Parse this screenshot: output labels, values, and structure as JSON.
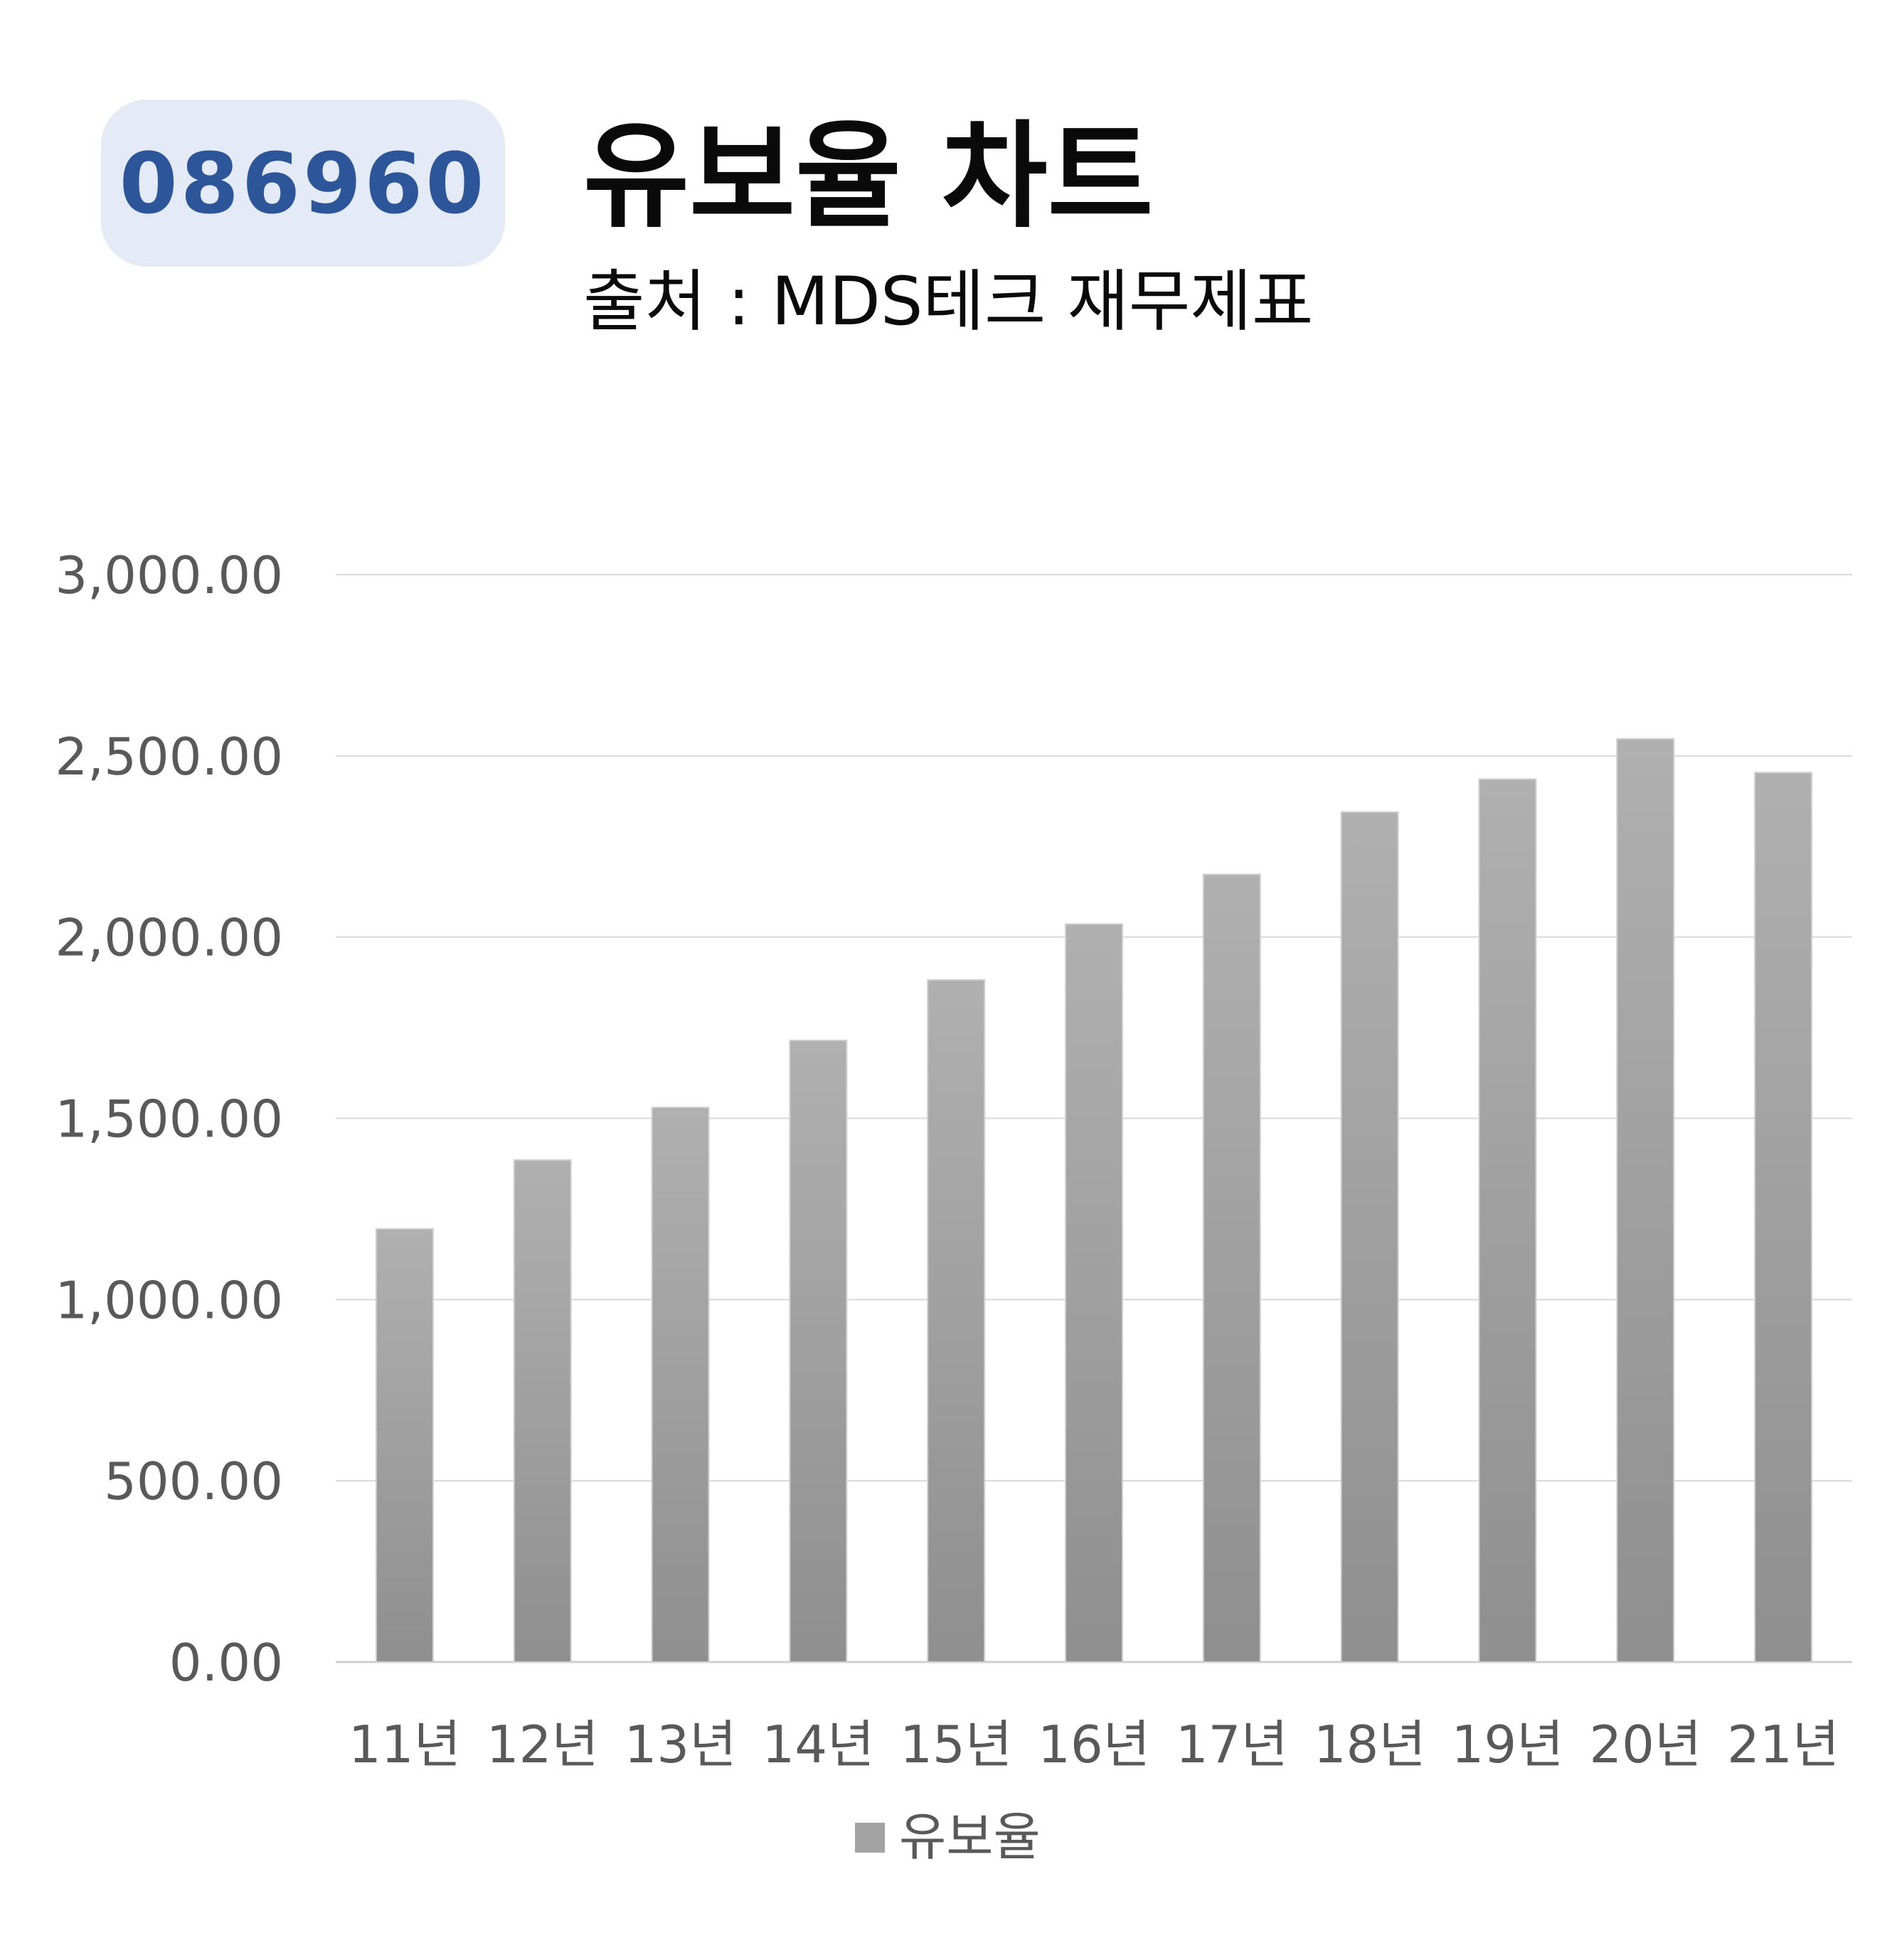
{
  "header": {
    "code": "086960",
    "title": "유보율 차트",
    "subtitle": "출처 : MDS테크 재무제표"
  },
  "colors": {
    "badge_bg": "#e4eaf6",
    "badge_text": "#2d5599",
    "bar_top": "#b0b0b0",
    "bar_bottom": "#8f8f8f",
    "grid": "#d9d9d9",
    "tick_text": "#595959"
  },
  "chart_data": {
    "type": "bar",
    "categories": [
      "11년",
      "12년",
      "13년",
      "14년",
      "15년",
      "16년",
      "17년",
      "18년",
      "19년",
      "20년",
      "21년"
    ],
    "series": [
      {
        "name": "유보율",
        "values": [
          1195,
          1385,
          1530,
          1715,
          1882,
          2036,
          2173,
          2345,
          2436,
          2547,
          2454
        ]
      }
    ],
    "ylim": [
      0,
      3000
    ],
    "yticks": [
      0,
      500,
      1000,
      1500,
      2000,
      2500,
      3000
    ],
    "ytick_labels": [
      "0.00",
      "500.00",
      "1,000.00",
      "1,500.00",
      "2,000.00",
      "2,500.00",
      "3,000.00"
    ],
    "grid": true,
    "legend": "bottom",
    "xlabel": "",
    "ylabel": ""
  }
}
